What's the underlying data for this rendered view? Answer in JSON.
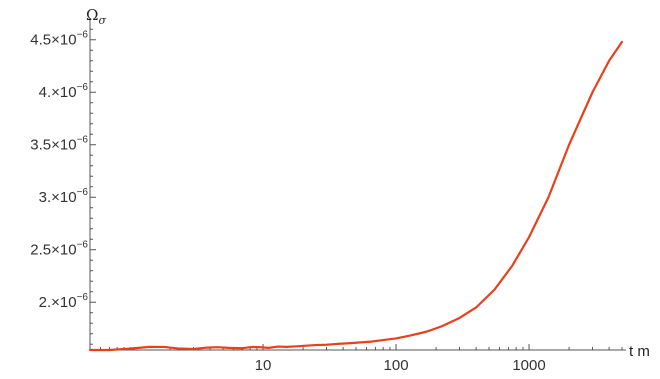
{
  "chart_data": {
    "type": "line",
    "title": "",
    "xlabel": "t m",
    "ylabel": "Ω",
    "ylabel_subscript": "σ",
    "x_scale": "log",
    "xlim": [
      0.5,
      5000
    ],
    "ylim": [
      1.545e-06,
      4.65e-06
    ],
    "x_ticks": [
      {
        "value": 10,
        "label": "10"
      },
      {
        "value": 100,
        "label": "100"
      },
      {
        "value": 1000,
        "label": "1000"
      }
    ],
    "y_ticks": [
      {
        "value": 2e-06,
        "label": "2.",
        "exponent": "−6"
      },
      {
        "value": 2.5e-06,
        "label": "2.5",
        "exponent": "−6"
      },
      {
        "value": 3e-06,
        "label": "3.",
        "exponent": "−6"
      },
      {
        "value": 3.5e-06,
        "label": "3.5",
        "exponent": "−6"
      },
      {
        "value": 4e-06,
        "label": "4.",
        "exponent": "−6"
      },
      {
        "value": 4.5e-06,
        "label": "4.5",
        "exponent": "−6"
      }
    ],
    "grid": false,
    "legend": "none",
    "series": [
      {
        "color": "#e8401c",
        "x": [
          0.5,
          0.7,
          1.0,
          1.4,
          1.8,
          2.3,
          3.0,
          3.8,
          4.6,
          5.5,
          7.0,
          8.3,
          9.5,
          11,
          13,
          15,
          18,
          21,
          25,
          30,
          36,
          43,
          50,
          65,
          80,
          100,
          130,
          170,
          220,
          300,
          400,
          550,
          750,
          1000,
          1400,
          2000,
          3000,
          4000,
          5000
        ],
        "y": [
          1.545e-06,
          1.545e-06,
          1.558e-06,
          1.575e-06,
          1.574e-06,
          1.56e-06,
          1.555e-06,
          1.568e-06,
          1.572e-06,
          1.565e-06,
          1.562e-06,
          1.574e-06,
          1.572e-06,
          1.565e-06,
          1.578e-06,
          1.575e-06,
          1.58e-06,
          1.586e-06,
          1.592e-06,
          1.595e-06,
          1.603e-06,
          1.608e-06,
          1.614e-06,
          1.625e-06,
          1.64e-06,
          1.655e-06,
          1.685e-06,
          1.72e-06,
          1.77e-06,
          1.85e-06,
          1.95e-06,
          2.12e-06,
          2.35e-06,
          2.62e-06,
          3e-06,
          3.5e-06,
          4e-06,
          4.3e-06,
          4.48e-06
        ]
      }
    ]
  }
}
